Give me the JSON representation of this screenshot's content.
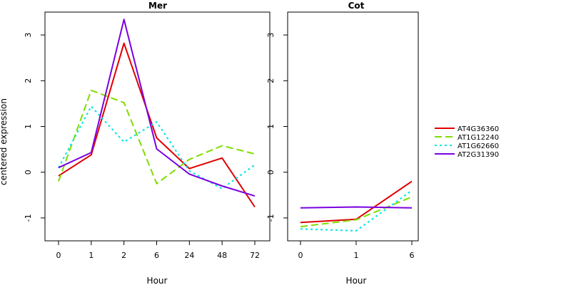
{
  "chart_data": [
    {
      "type": "line",
      "title": "Mer",
      "xlabel": "Hour",
      "ylabel": "centered expression",
      "categories": [
        "0",
        "1",
        "2",
        "6",
        "24",
        "48",
        "72"
      ],
      "yticks": [
        "-1",
        "0",
        "1",
        "2",
        "3"
      ],
      "ylim": [
        -1.5,
        3.5
      ],
      "grid": false,
      "series": [
        {
          "name": "AT4G36360",
          "color": "#e00000",
          "dash": "solid",
          "values": [
            -0.08,
            0.38,
            2.82,
            0.75,
            0.08,
            0.31,
            -0.76
          ]
        },
        {
          "name": "AT1G12240",
          "color": "#7fdd00",
          "dash": "dashed",
          "values": [
            -0.2,
            1.79,
            1.52,
            -0.25,
            0.28,
            0.58,
            0.4
          ]
        },
        {
          "name": "AT1G62660",
          "color": "#00e5e5",
          "dash": "dotted",
          "values": [
            0.1,
            1.44,
            0.66,
            1.1,
            0.03,
            -0.36,
            0.16
          ]
        },
        {
          "name": "AT2G31390",
          "color": "#7a00e0",
          "dash": "solid",
          "values": [
            0.1,
            0.43,
            3.34,
            0.51,
            -0.04,
            -0.3,
            -0.52
          ]
        }
      ]
    },
    {
      "type": "line",
      "title": "Cot",
      "xlabel": "Hour",
      "categories": [
        "0",
        "1",
        "6"
      ],
      "yticks": [
        "-1",
        "0",
        "1",
        "2",
        "3"
      ],
      "ylim": [
        -1.5,
        3.5
      ],
      "grid": false,
      "series": [
        {
          "name": "AT4G36360",
          "color": "#e00000",
          "dash": "solid",
          "values": [
            -1.1,
            -1.03,
            -0.2
          ]
        },
        {
          "name": "AT1G12240",
          "color": "#7fdd00",
          "dash": "dashed",
          "values": [
            -1.19,
            -1.04,
            -0.54
          ]
        },
        {
          "name": "AT1G62660",
          "color": "#00e5e5",
          "dash": "dotted",
          "values": [
            -1.24,
            -1.28,
            -0.4
          ]
        },
        {
          "name": "AT2G31390",
          "color": "#7a00e0",
          "dash": "solid",
          "values": [
            -0.78,
            -0.76,
            -0.78
          ]
        }
      ]
    }
  ],
  "legend": {
    "position": "right",
    "items": [
      {
        "label": "AT4G36360",
        "color": "#e00000",
        "dash": "solid"
      },
      {
        "label": "AT1G12240",
        "color": "#7fdd00",
        "dash": "dashed"
      },
      {
        "label": "AT1G62660",
        "color": "#00e5e5",
        "dash": "dotted"
      },
      {
        "label": "AT2G31390",
        "color": "#7a00e0",
        "dash": "solid"
      }
    ]
  }
}
